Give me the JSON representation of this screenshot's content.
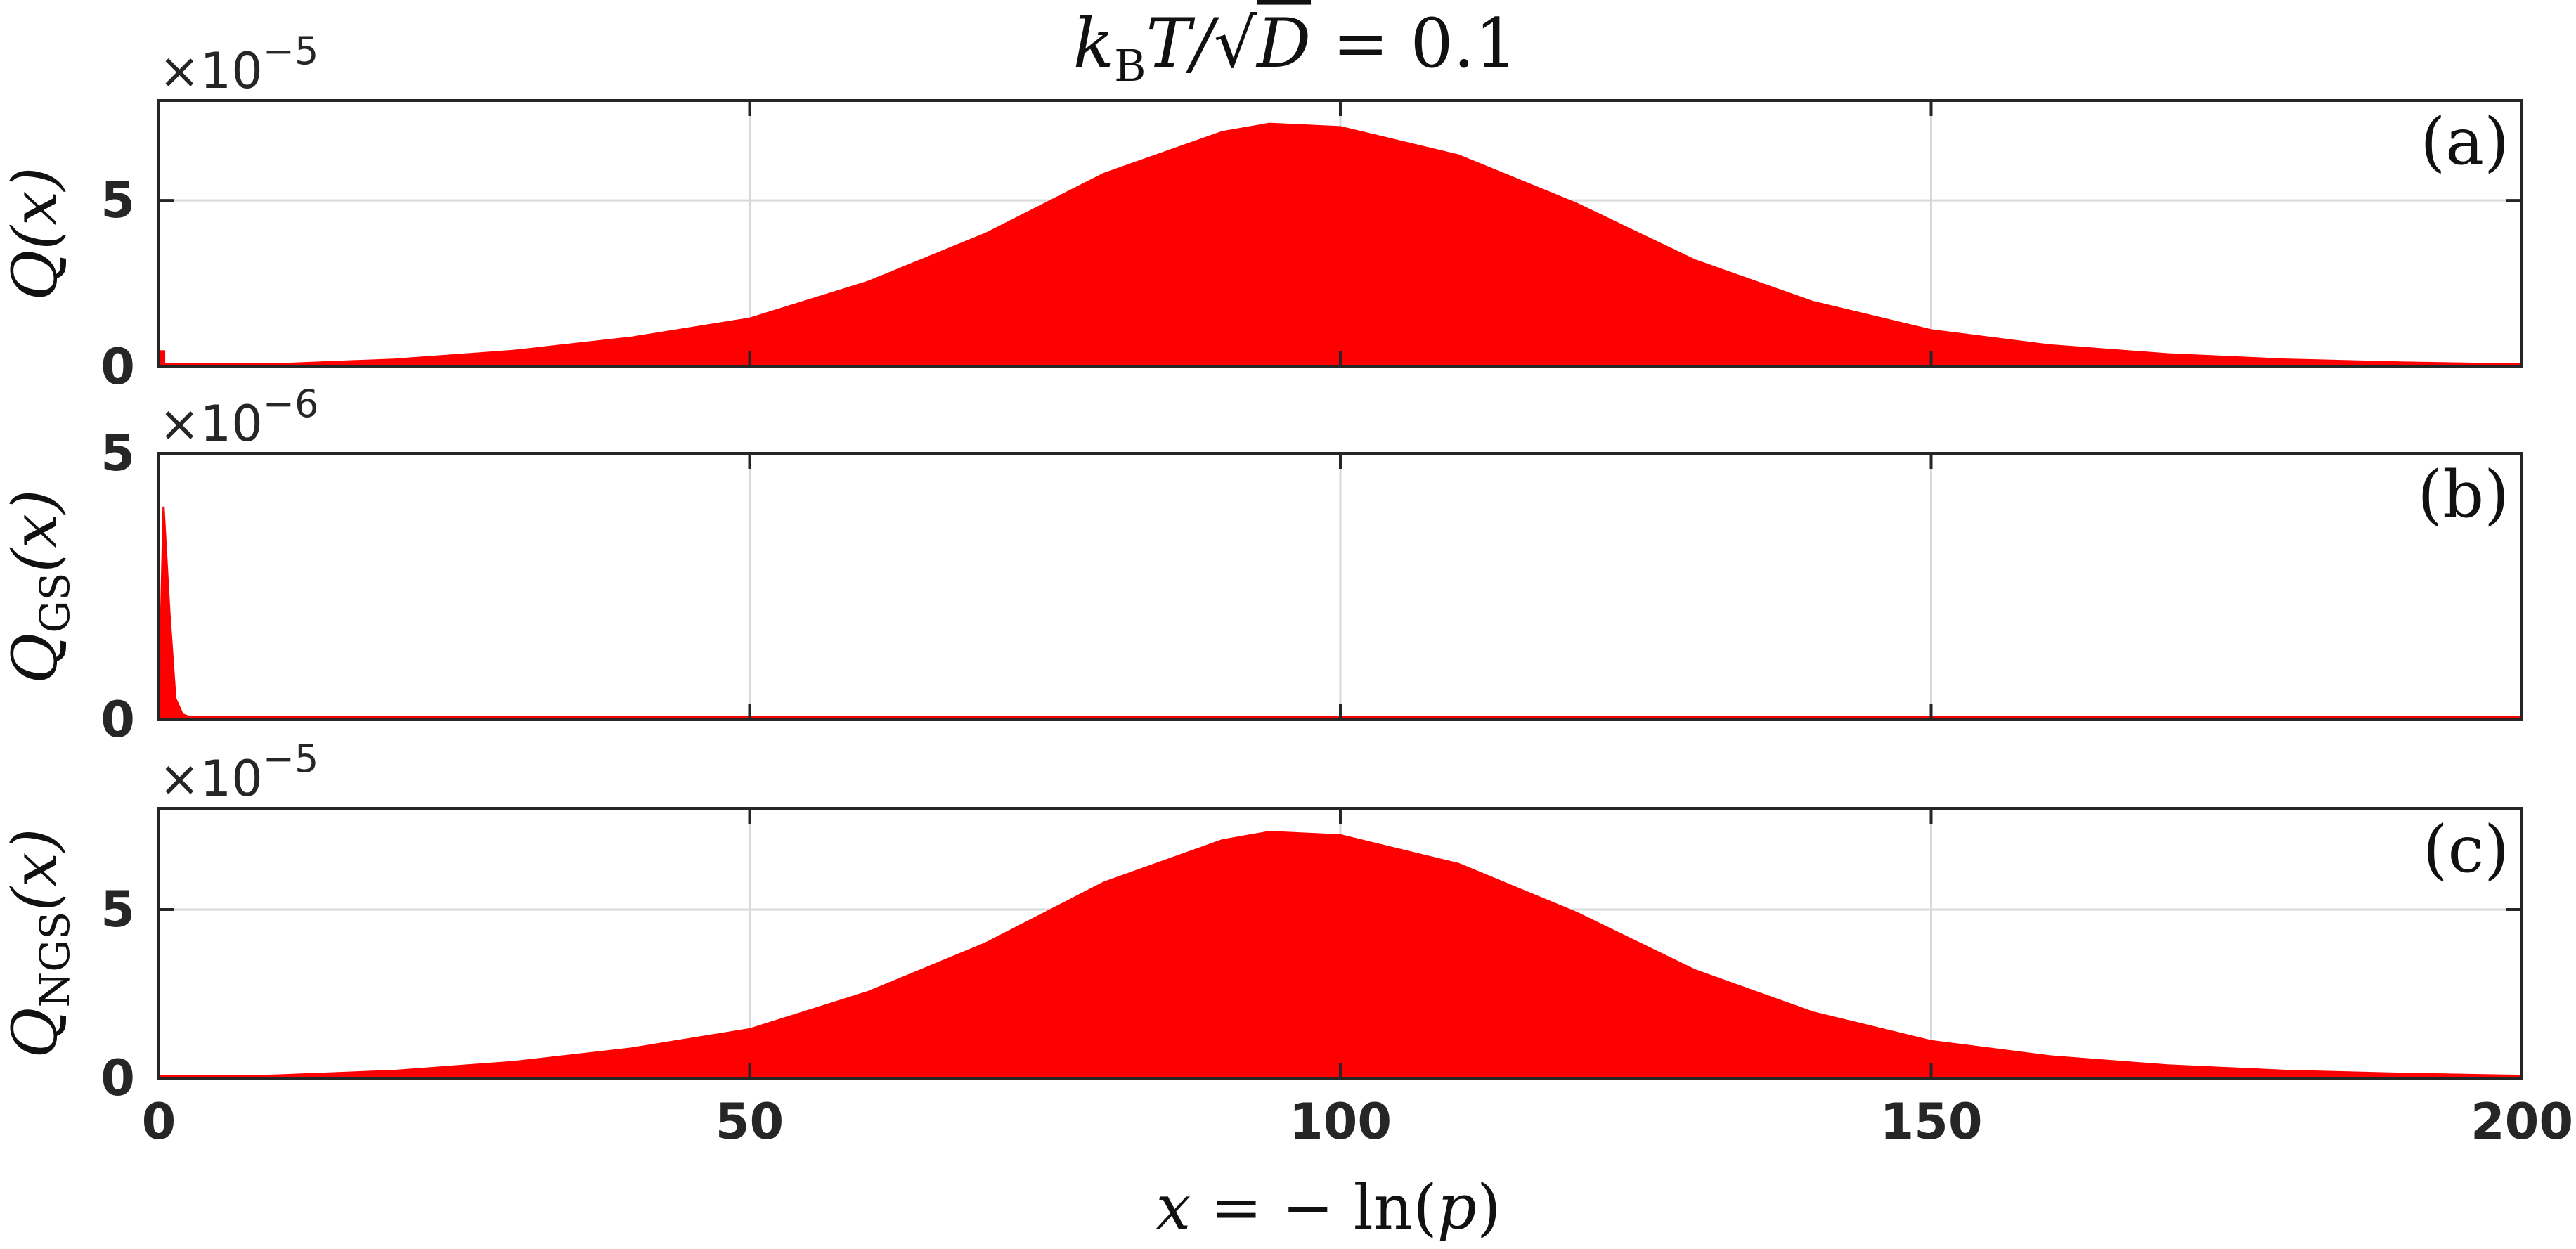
{
  "figure": {
    "title": "k_B T/√D = 0.1",
    "xlabel": "x = − ln(p)"
  },
  "colors": {
    "fill": "#ff0000",
    "axes": "#262626",
    "grid": "#d9d9d9",
    "background": "#ffffff"
  },
  "chart_data": [
    {
      "type": "area",
      "panel": "(a)",
      "ylabel": "Q(x)",
      "multiplier": "×10^−5",
      "xlim": [
        0,
        200
      ],
      "ylim": [
        0,
        8
      ],
      "xticks": [
        0,
        50,
        100,
        150,
        200
      ],
      "yticks": [
        0,
        5
      ],
      "grid": true,
      "spike": {
        "x": 0.3,
        "y": 0.5
      },
      "x": [
        0,
        10,
        20,
        30,
        40,
        50,
        60,
        70,
        80,
        90,
        94,
        100,
        110,
        120,
        130,
        140,
        150,
        160,
        170,
        180,
        190,
        200
      ],
      "y": [
        0.0,
        0.08,
        0.22,
        0.48,
        0.88,
        1.45,
        2.55,
        4.0,
        5.8,
        7.05,
        7.3,
        7.2,
        6.35,
        4.9,
        3.2,
        1.95,
        1.1,
        0.65,
        0.38,
        0.22,
        0.13,
        0.07
      ]
    },
    {
      "type": "area",
      "panel": "(b)",
      "ylabel": "Q_GS(x)",
      "multiplier": "×10^−6",
      "xlim": [
        0,
        200
      ],
      "ylim": [
        0,
        5
      ],
      "xticks": [
        0,
        50,
        100,
        150,
        200
      ],
      "yticks": [
        0,
        5
      ],
      "grid": true,
      "x": [
        0,
        0.4,
        0.9,
        1.4,
        2.0,
        3.0,
        200
      ],
      "y": [
        0,
        4.0,
        2.0,
        0.4,
        0.1,
        0.02,
        0.0
      ]
    },
    {
      "type": "area",
      "panel": "(c)",
      "ylabel": "Q_NGS(x)",
      "multiplier": "×10^−5",
      "xlim": [
        0,
        200
      ],
      "ylim": [
        0,
        8
      ],
      "xticks": [
        0,
        50,
        100,
        150,
        200
      ],
      "yticks": [
        0,
        5
      ],
      "grid": true,
      "x": [
        0,
        10,
        20,
        30,
        40,
        50,
        60,
        70,
        80,
        90,
        94,
        100,
        110,
        120,
        130,
        140,
        150,
        160,
        170,
        180,
        190,
        200
      ],
      "y": [
        0.0,
        0.08,
        0.22,
        0.48,
        0.88,
        1.45,
        2.55,
        4.0,
        5.8,
        7.05,
        7.3,
        7.2,
        6.35,
        4.9,
        3.2,
        1.95,
        1.1,
        0.65,
        0.38,
        0.22,
        0.13,
        0.07
      ]
    }
  ]
}
